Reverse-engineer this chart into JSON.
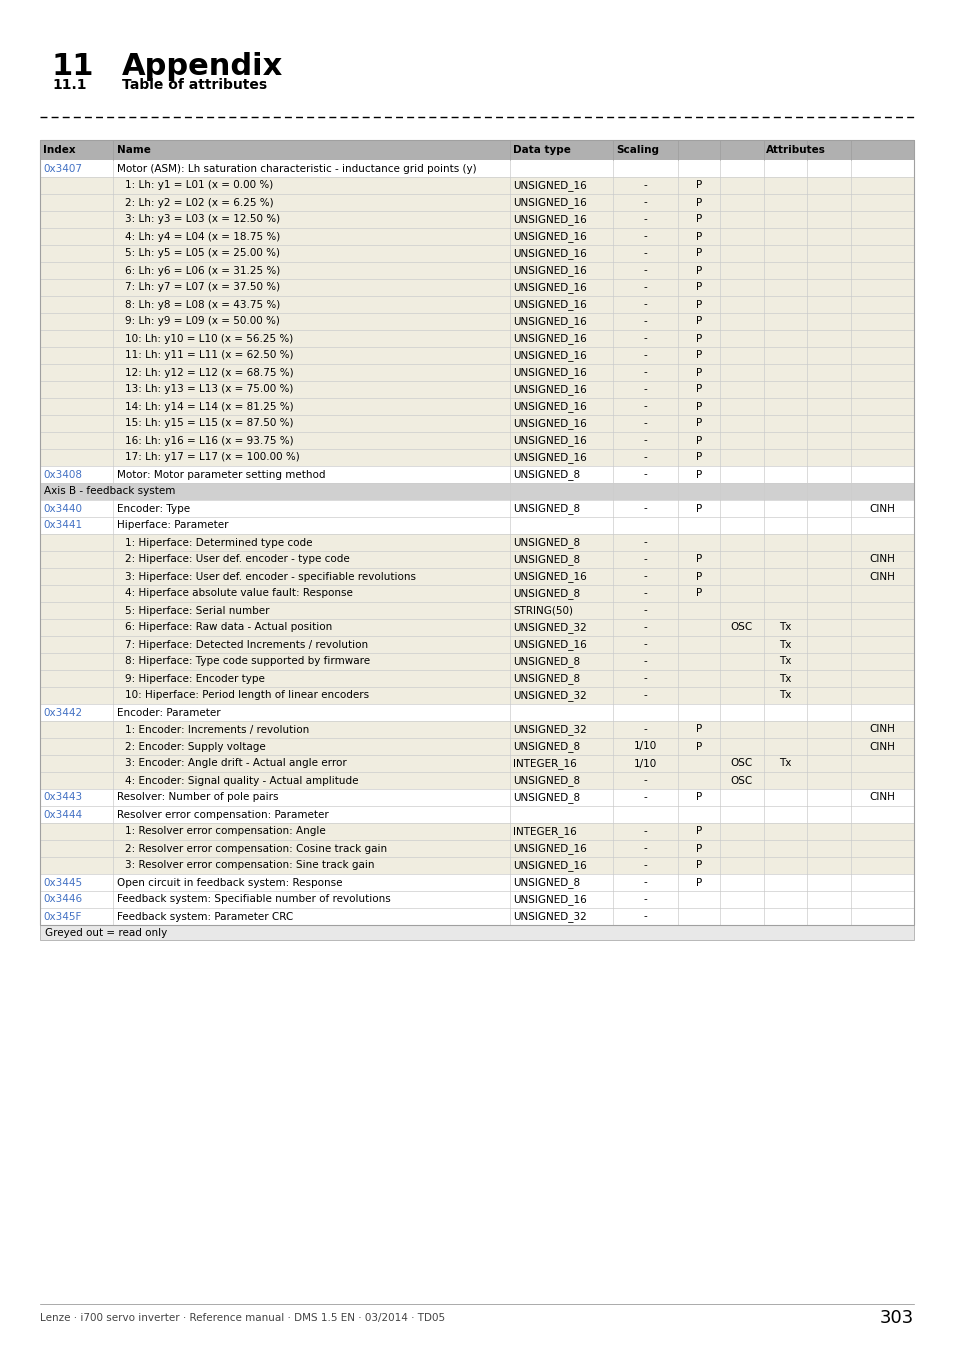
{
  "title_number": "11",
  "title_text": "Appendix",
  "subtitle_number": "11.1",
  "subtitle_text": "Table of attributes",
  "footer_text": "Lenze · i700 servo inverter · Reference manual · DMS 1.5 EN · 03/2014 · TD05",
  "page_number": "303",
  "greyed_note": "Greyed out = read only",
  "rows": [
    {
      "index": "0x3407",
      "name": "Motor (ASM): Lh saturation characteristic - inductance grid points (y)",
      "dtype": "",
      "scaling": "",
      "P": "",
      "OSC": "",
      "Tx": "",
      "CINH": "",
      "type": "index_header",
      "link": true
    },
    {
      "index": "",
      "name": "1: Lh: y1 = L01 (x = 0.00 %)",
      "dtype": "UNSIGNED_16",
      "scaling": "-",
      "P": "P",
      "OSC": "",
      "Tx": "",
      "CINH": "",
      "type": "subrow",
      "link": false
    },
    {
      "index": "",
      "name": "2: Lh: y2 = L02 (x = 6.25 %)",
      "dtype": "UNSIGNED_16",
      "scaling": "-",
      "P": "P",
      "OSC": "",
      "Tx": "",
      "CINH": "",
      "type": "subrow",
      "link": false
    },
    {
      "index": "",
      "name": "3: Lh: y3 = L03 (x = 12.50 %)",
      "dtype": "UNSIGNED_16",
      "scaling": "-",
      "P": "P",
      "OSC": "",
      "Tx": "",
      "CINH": "",
      "type": "subrow",
      "link": false
    },
    {
      "index": "",
      "name": "4: Lh: y4 = L04 (x = 18.75 %)",
      "dtype": "UNSIGNED_16",
      "scaling": "-",
      "P": "P",
      "OSC": "",
      "Tx": "",
      "CINH": "",
      "type": "subrow",
      "link": false
    },
    {
      "index": "",
      "name": "5: Lh: y5 = L05 (x = 25.00 %)",
      "dtype": "UNSIGNED_16",
      "scaling": "-",
      "P": "P",
      "OSC": "",
      "Tx": "",
      "CINH": "",
      "type": "subrow",
      "link": false
    },
    {
      "index": "",
      "name": "6: Lh: y6 = L06 (x = 31.25 %)",
      "dtype": "UNSIGNED_16",
      "scaling": "-",
      "P": "P",
      "OSC": "",
      "Tx": "",
      "CINH": "",
      "type": "subrow",
      "link": false
    },
    {
      "index": "",
      "name": "7: Lh: y7 = L07 (x = 37.50 %)",
      "dtype": "UNSIGNED_16",
      "scaling": "-",
      "P": "P",
      "OSC": "",
      "Tx": "",
      "CINH": "",
      "type": "subrow",
      "link": false
    },
    {
      "index": "",
      "name": "8: Lh: y8 = L08 (x = 43.75 %)",
      "dtype": "UNSIGNED_16",
      "scaling": "-",
      "P": "P",
      "OSC": "",
      "Tx": "",
      "CINH": "",
      "type": "subrow",
      "link": false
    },
    {
      "index": "",
      "name": "9: Lh: y9 = L09 (x = 50.00 %)",
      "dtype": "UNSIGNED_16",
      "scaling": "-",
      "P": "P",
      "OSC": "",
      "Tx": "",
      "CINH": "",
      "type": "subrow",
      "link": false
    },
    {
      "index": "",
      "name": "10: Lh: y10 = L10 (x = 56.25 %)",
      "dtype": "UNSIGNED_16",
      "scaling": "-",
      "P": "P",
      "OSC": "",
      "Tx": "",
      "CINH": "",
      "type": "subrow",
      "link": false
    },
    {
      "index": "",
      "name": "11: Lh: y11 = L11 (x = 62.50 %)",
      "dtype": "UNSIGNED_16",
      "scaling": "-",
      "P": "P",
      "OSC": "",
      "Tx": "",
      "CINH": "",
      "type": "subrow",
      "link": false
    },
    {
      "index": "",
      "name": "12: Lh: y12 = L12 (x = 68.75 %)",
      "dtype": "UNSIGNED_16",
      "scaling": "-",
      "P": "P",
      "OSC": "",
      "Tx": "",
      "CINH": "",
      "type": "subrow",
      "link": false
    },
    {
      "index": "",
      "name": "13: Lh: y13 = L13 (x = 75.00 %)",
      "dtype": "UNSIGNED_16",
      "scaling": "-",
      "P": "P",
      "OSC": "",
      "Tx": "",
      "CINH": "",
      "type": "subrow",
      "link": false
    },
    {
      "index": "",
      "name": "14: Lh: y14 = L14 (x = 81.25 %)",
      "dtype": "UNSIGNED_16",
      "scaling": "-",
      "P": "P",
      "OSC": "",
      "Tx": "",
      "CINH": "",
      "type": "subrow",
      "link": false
    },
    {
      "index": "",
      "name": "15: Lh: y15 = L15 (x = 87.50 %)",
      "dtype": "UNSIGNED_16",
      "scaling": "-",
      "P": "P",
      "OSC": "",
      "Tx": "",
      "CINH": "",
      "type": "subrow",
      "link": false
    },
    {
      "index": "",
      "name": "16: Lh: y16 = L16 (x = 93.75 %)",
      "dtype": "UNSIGNED_16",
      "scaling": "-",
      "P": "P",
      "OSC": "",
      "Tx": "",
      "CINH": "",
      "type": "subrow",
      "link": false
    },
    {
      "index": "",
      "name": "17: Lh: y17 = L17 (x = 100.00 %)",
      "dtype": "UNSIGNED_16",
      "scaling": "-",
      "P": "P",
      "OSC": "",
      "Tx": "",
      "CINH": "",
      "type": "subrow",
      "link": false
    },
    {
      "index": "0x3408",
      "name": "Motor: Motor parameter setting method",
      "dtype": "UNSIGNED_8",
      "scaling": "-",
      "P": "P",
      "OSC": "",
      "Tx": "",
      "CINH": "",
      "type": "normal",
      "link": true
    },
    {
      "index": "",
      "name": "Axis B - feedback system",
      "dtype": "",
      "scaling": "",
      "P": "",
      "OSC": "",
      "Tx": "",
      "CINH": "",
      "type": "section",
      "link": false
    },
    {
      "index": "0x3440",
      "name": "Encoder: Type",
      "dtype": "UNSIGNED_8",
      "scaling": "-",
      "P": "P",
      "OSC": "",
      "Tx": "",
      "CINH": "CINH",
      "type": "normal",
      "link": true
    },
    {
      "index": "0x3441",
      "name": "Hiperface: Parameter",
      "dtype": "",
      "scaling": "",
      "P": "",
      "OSC": "",
      "Tx": "",
      "CINH": "",
      "type": "index_header",
      "link": true
    },
    {
      "index": "",
      "name": "1: Hiperface: Determined type code",
      "dtype": "UNSIGNED_8",
      "scaling": "-",
      "P": "",
      "OSC": "",
      "Tx": "",
      "CINH": "",
      "type": "subrow",
      "link": false
    },
    {
      "index": "",
      "name": "2: Hiperface: User def. encoder - type code",
      "dtype": "UNSIGNED_8",
      "scaling": "-",
      "P": "P",
      "OSC": "",
      "Tx": "",
      "CINH": "CINH",
      "type": "subrow",
      "link": false
    },
    {
      "index": "",
      "name": "3: Hiperface: User def. encoder - specifiable revolutions",
      "dtype": "UNSIGNED_16",
      "scaling": "-",
      "P": "P",
      "OSC": "",
      "Tx": "",
      "CINH": "CINH",
      "type": "subrow",
      "link": false
    },
    {
      "index": "",
      "name": "4: Hiperface absolute value fault: Response",
      "dtype": "UNSIGNED_8",
      "scaling": "-",
      "P": "P",
      "OSC": "",
      "Tx": "",
      "CINH": "",
      "type": "subrow",
      "link": false
    },
    {
      "index": "",
      "name": "5: Hiperface: Serial number",
      "dtype": "STRING(50)",
      "scaling": "-",
      "P": "",
      "OSC": "",
      "Tx": "",
      "CINH": "",
      "type": "subrow",
      "link": false
    },
    {
      "index": "",
      "name": "6: Hiperface: Raw data - Actual position",
      "dtype": "UNSIGNED_32",
      "scaling": "-",
      "P": "",
      "OSC": "OSC",
      "Tx": "Tx",
      "CINH": "",
      "type": "subrow",
      "link": false
    },
    {
      "index": "",
      "name": "7: Hiperface: Detected Increments / revolution",
      "dtype": "UNSIGNED_16",
      "scaling": "-",
      "P": "",
      "OSC": "",
      "Tx": "Tx",
      "CINH": "",
      "type": "subrow",
      "link": false
    },
    {
      "index": "",
      "name": "8: Hiperface: Type code supported by firmware",
      "dtype": "UNSIGNED_8",
      "scaling": "-",
      "P": "",
      "OSC": "",
      "Tx": "Tx",
      "CINH": "",
      "type": "subrow",
      "link": false
    },
    {
      "index": "",
      "name": "9: Hiperface: Encoder type",
      "dtype": "UNSIGNED_8",
      "scaling": "-",
      "P": "",
      "OSC": "",
      "Tx": "Tx",
      "CINH": "",
      "type": "subrow",
      "link": false
    },
    {
      "index": "",
      "name": "10: Hiperface: Period length of linear encoders",
      "dtype": "UNSIGNED_32",
      "scaling": "-",
      "P": "",
      "OSC": "",
      "Tx": "Tx",
      "CINH": "",
      "type": "subrow",
      "link": false
    },
    {
      "index": "0x3442",
      "name": "Encoder: Parameter",
      "dtype": "",
      "scaling": "",
      "P": "",
      "OSC": "",
      "Tx": "",
      "CINH": "",
      "type": "index_header",
      "link": true
    },
    {
      "index": "",
      "name": "1: Encoder: Increments / revolution",
      "dtype": "UNSIGNED_32",
      "scaling": "-",
      "P": "P",
      "OSC": "",
      "Tx": "",
      "CINH": "CINH",
      "type": "subrow",
      "link": false
    },
    {
      "index": "",
      "name": "2: Encoder: Supply voltage",
      "dtype": "UNSIGNED_8",
      "scaling": "1/10",
      "P": "P",
      "OSC": "",
      "Tx": "",
      "CINH": "CINH",
      "type": "subrow",
      "link": false
    },
    {
      "index": "",
      "name": "3: Encoder: Angle drift - Actual angle error",
      "dtype": "INTEGER_16",
      "scaling": "1/10",
      "P": "",
      "OSC": "OSC",
      "Tx": "Tx",
      "CINH": "",
      "type": "subrow",
      "link": false
    },
    {
      "index": "",
      "name": "4: Encoder: Signal quality - Actual amplitude",
      "dtype": "UNSIGNED_8",
      "scaling": "-",
      "P": "",
      "OSC": "OSC",
      "Tx": "",
      "CINH": "",
      "type": "subrow",
      "link": false
    },
    {
      "index": "0x3443",
      "name": "Resolver: Number of pole pairs",
      "dtype": "UNSIGNED_8",
      "scaling": "-",
      "P": "P",
      "OSC": "",
      "Tx": "",
      "CINH": "CINH",
      "type": "normal",
      "link": true
    },
    {
      "index": "0x3444",
      "name": "Resolver error compensation: Parameter",
      "dtype": "",
      "scaling": "",
      "P": "",
      "OSC": "",
      "Tx": "",
      "CINH": "",
      "type": "index_header",
      "link": true
    },
    {
      "index": "",
      "name": "1: Resolver error compensation: Angle",
      "dtype": "INTEGER_16",
      "scaling": "-",
      "P": "P",
      "OSC": "",
      "Tx": "",
      "CINH": "",
      "type": "subrow",
      "link": false
    },
    {
      "index": "",
      "name": "2: Resolver error compensation: Cosine track gain",
      "dtype": "UNSIGNED_16",
      "scaling": "-",
      "P": "P",
      "OSC": "",
      "Tx": "",
      "CINH": "",
      "type": "subrow",
      "link": false
    },
    {
      "index": "",
      "name": "3: Resolver error compensation: Sine track gain",
      "dtype": "UNSIGNED_16",
      "scaling": "-",
      "P": "P",
      "OSC": "",
      "Tx": "",
      "CINH": "",
      "type": "subrow",
      "link": false
    },
    {
      "index": "0x3445",
      "name": "Open circuit in feedback system: Response",
      "dtype": "UNSIGNED_8",
      "scaling": "-",
      "P": "P",
      "OSC": "",
      "Tx": "",
      "CINH": "",
      "type": "normal",
      "link": true
    },
    {
      "index": "0x3446",
      "name": "Feedback system: Specifiable number of revolutions",
      "dtype": "UNSIGNED_16",
      "scaling": "-",
      "P": "",
      "OSC": "",
      "Tx": "",
      "CINH": "",
      "type": "normal",
      "link": true
    },
    {
      "index": "0x345F",
      "name": "Feedback system: Parameter CRC",
      "dtype": "UNSIGNED_32",
      "scaling": "-",
      "P": "",
      "OSC": "",
      "Tx": "",
      "CINH": "",
      "type": "normal",
      "link": true
    }
  ]
}
